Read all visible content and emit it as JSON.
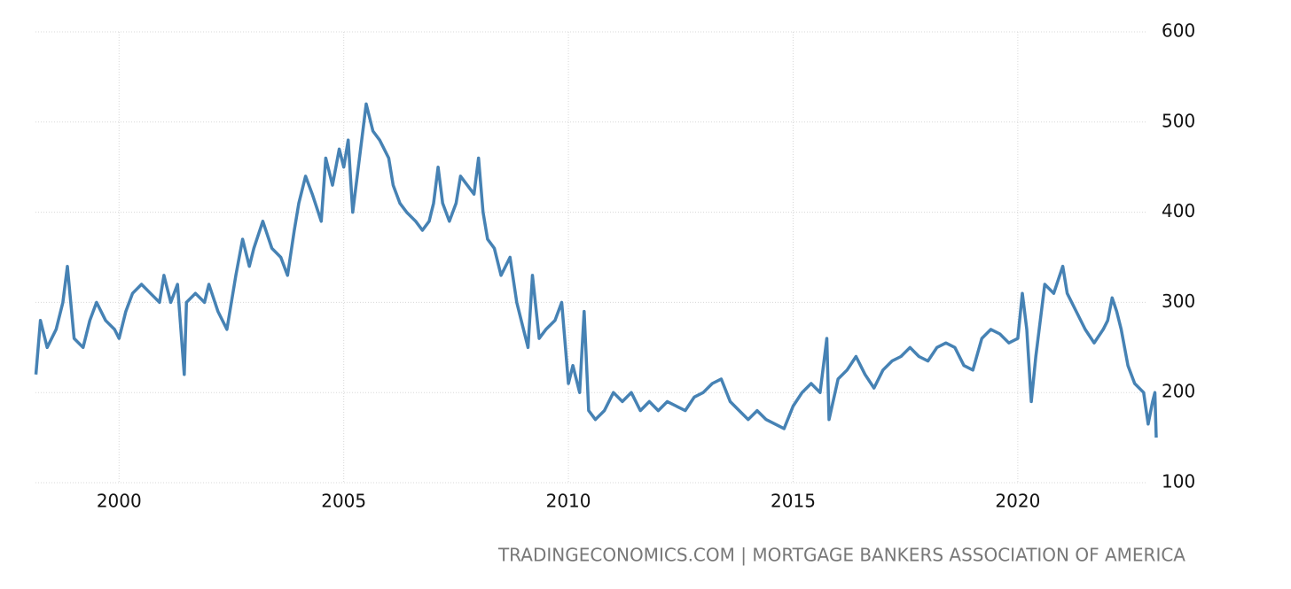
{
  "chart_data": {
    "type": "line",
    "source": "TRADINGECONOMICS.COM | MORTGAGE BANKERS ASSOCIATION OF AMERICA",
    "color": "#4682b4",
    "grid": true,
    "xlim": [
      1998.14,
      2023.1
    ],
    "xticks": [
      2000,
      2005,
      2010,
      2015,
      2020
    ],
    "ylim": [
      100,
      600
    ],
    "yticks": [
      100,
      200,
      300,
      400,
      500,
      600
    ],
    "x": [
      1998.15,
      1998.25,
      1998.4,
      1998.6,
      1998.75,
      1998.85,
      1999.0,
      1999.2,
      1999.35,
      1999.5,
      1999.7,
      1999.9,
      2000.0,
      2000.15,
      2000.3,
      2000.5,
      2000.7,
      2000.9,
      2001.0,
      2001.15,
      2001.3,
      2001.45,
      2001.5,
      2001.7,
      2001.9,
      2002.0,
      2002.2,
      2002.4,
      2002.6,
      2002.75,
      2002.9,
      2003.0,
      2003.2,
      2003.4,
      2003.6,
      2003.75,
      2003.9,
      2004.0,
      2004.15,
      2004.3,
      2004.5,
      2004.6,
      2004.75,
      2004.9,
      2005.0,
      2005.1,
      2005.2,
      2005.35,
      2005.5,
      2005.65,
      2005.8,
      2006.0,
      2006.1,
      2006.25,
      2006.4,
      2006.6,
      2006.75,
      2006.9,
      2007.0,
      2007.1,
      2007.2,
      2007.35,
      2007.5,
      2007.6,
      2007.75,
      2007.9,
      2008.0,
      2008.1,
      2008.2,
      2008.35,
      2008.5,
      2008.7,
      2008.85,
      2009.0,
      2009.1,
      2009.2,
      2009.35,
      2009.5,
      2009.7,
      2009.85,
      2010.0,
      2010.1,
      2010.25,
      2010.35,
      2010.45,
      2010.6,
      2010.8,
      2011.0,
      2011.2,
      2011.4,
      2011.6,
      2011.8,
      2012.0,
      2012.2,
      2012.4,
      2012.6,
      2012.8,
      2013.0,
      2013.2,
      2013.4,
      2013.6,
      2013.8,
      2014.0,
      2014.2,
      2014.4,
      2014.6,
      2014.8,
      2015.0,
      2015.2,
      2015.4,
      2015.6,
      2015.75,
      2015.8,
      2016.0,
      2016.2,
      2016.4,
      2016.6,
      2016.8,
      2017.0,
      2017.2,
      2017.4,
      2017.6,
      2017.8,
      2018.0,
      2018.2,
      2018.4,
      2018.6,
      2018.8,
      2019.0,
      2019.2,
      2019.4,
      2019.6,
      2019.8,
      2020.0,
      2020.1,
      2020.2,
      2020.3,
      2020.4,
      2020.6,
      2020.8,
      2021.0,
      2021.1,
      2021.3,
      2021.5,
      2021.7,
      2021.9,
      2022.0,
      2022.1,
      2022.2,
      2022.3,
      2022.45,
      2022.6,
      2022.8,
      2022.9,
      2023.0,
      2023.05,
      2023.08
    ],
    "values": [
      220,
      280,
      250,
      270,
      300,
      340,
      260,
      250,
      280,
      300,
      280,
      270,
      260,
      290,
      310,
      320,
      310,
      300,
      330,
      300,
      320,
      220,
      300,
      310,
      300,
      320,
      290,
      270,
      330,
      370,
      340,
      360,
      390,
      360,
      350,
      330,
      380,
      410,
      440,
      420,
      390,
      460,
      430,
      470,
      450,
      480,
      400,
      460,
      520,
      490,
      480,
      460,
      430,
      410,
      400,
      390,
      380,
      390,
      410,
      450,
      410,
      390,
      410,
      440,
      430,
      420,
      460,
      400,
      370,
      360,
      330,
      350,
      300,
      270,
      250,
      330,
      260,
      270,
      280,
      300,
      210,
      230,
      200,
      290,
      180,
      170,
      180,
      200,
      190,
      200,
      180,
      190,
      180,
      190,
      185,
      180,
      195,
      200,
      210,
      215,
      190,
      180,
      170,
      180,
      170,
      165,
      160,
      185,
      200,
      210,
      200,
      260,
      170,
      215,
      225,
      240,
      220,
      205,
      225,
      235,
      240,
      250,
      240,
      235,
      250,
      255,
      250,
      230,
      225,
      260,
      270,
      265,
      255,
      260,
      310,
      270,
      190,
      240,
      320,
      310,
      340,
      310,
      290,
      270,
      255,
      270,
      280,
      305,
      290,
      270,
      230,
      210,
      200,
      165,
      190,
      200,
      150
    ]
  }
}
